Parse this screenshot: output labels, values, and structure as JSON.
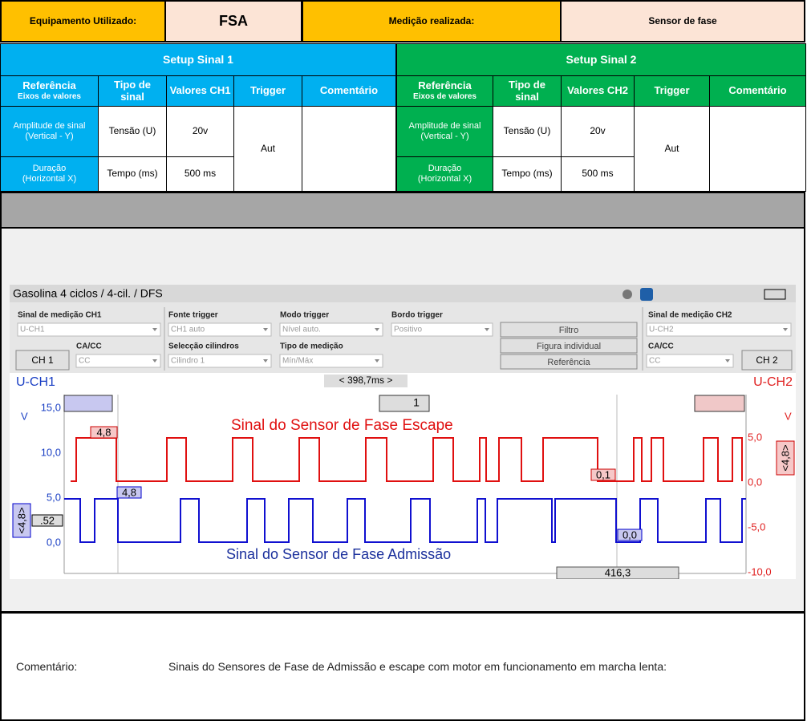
{
  "header": {
    "equipment_label": "Equipamento Utilizado:",
    "equipment": "FSA",
    "measurement_label": "Medição realizada:",
    "measurement": "Sensor de fase"
  },
  "setup": [
    {
      "title": "Setup Sinal 1",
      "headers": [
        {
          "text": "Referência",
          "sub": "Eixos de valores"
        },
        {
          "text": "Tipo de sinal"
        },
        {
          "text": "Valores CH1"
        },
        {
          "text": "Trigger"
        },
        {
          "text": "Comentário"
        }
      ],
      "rows": [
        {
          "label": "Amplitude de sinal",
          "sub": "(Vertical - Y)",
          "type": "Tensão (U)",
          "value": "20v"
        },
        {
          "label": "Duração",
          "sub": "(Horizontal X)",
          "type": "Tempo (ms)",
          "value": "500 ms"
        }
      ],
      "trigger": "Aut"
    },
    {
      "title": "Setup Sinal 2",
      "headers": [
        {
          "text": "Referência",
          "sub": "Eixos de valores"
        },
        {
          "text": "Tipo de sinal"
        },
        {
          "text": "Valores CH2"
        },
        {
          "text": "Trigger"
        },
        {
          "text": "Comentário"
        }
      ],
      "rows": [
        {
          "label": "Amplitude de sinal",
          "sub": "(Vertical - Y)",
          "type": "Tensão (U)",
          "value": "20v"
        },
        {
          "label": "Duração",
          "sub": "(Horizontal X)",
          "type": "Tempo (ms)",
          "value": "500 ms"
        }
      ],
      "trigger": "Aut"
    }
  ],
  "scope": {
    "title": "Gasolina 4 ciclos /  4-cil. / DFS",
    "fields": [
      {
        "label": "Sinal de medição CH1",
        "value": "U-CH1"
      },
      {
        "label": "CA/CC",
        "value": "CC"
      },
      {
        "label": "Fonte trigger",
        "value": "CH1 auto"
      },
      {
        "label": "Selecção cilindros",
        "value": "Cilindro 1"
      },
      {
        "label": "Modo trigger",
        "value": "Nível auto."
      },
      {
        "label": "Tipo de medição",
        "value": "Mín/Máx"
      },
      {
        "label": "Bordo trigger",
        "value": "Positivo"
      },
      {
        "label": "Sinal de medição CH2",
        "value": "U-CH2"
      },
      {
        "label": "CA/CC",
        "value": "CC"
      }
    ],
    "buttons": [
      "CH 1",
      "Filtro",
      "Figura individual",
      "Referência",
      "CH 2"
    ],
    "ch1_label": "U-CH1",
    "ch2_label": "U-CH2",
    "time_window": "< 398,7ms >",
    "unit_left": "V",
    "unit_right": "V",
    "left_ticks": [
      "15,0",
      "10,0",
      "5,0",
      "0,0"
    ],
    "right_ticks": [
      "5,0",
      "0,0",
      "-5,0",
      "-10,0"
    ],
    "trigger_channel": "1",
    "cursor_value": "416,3",
    "markers": [
      "4,8",
      "4,8",
      "0,1",
      "0,0",
      ".52",
      "<4,8>",
      "<4,8>"
    ],
    "annotation_escape": "Sinal do Sensor de Fase Escape",
    "annotation_admission": "Sinal do Sensor de Fase Admissão"
  },
  "comment": {
    "label": "Comentário:",
    "text": "Sinais do Sensores de Fase de Admissão e escape com motor em funcionamento em marcha lenta:"
  }
}
